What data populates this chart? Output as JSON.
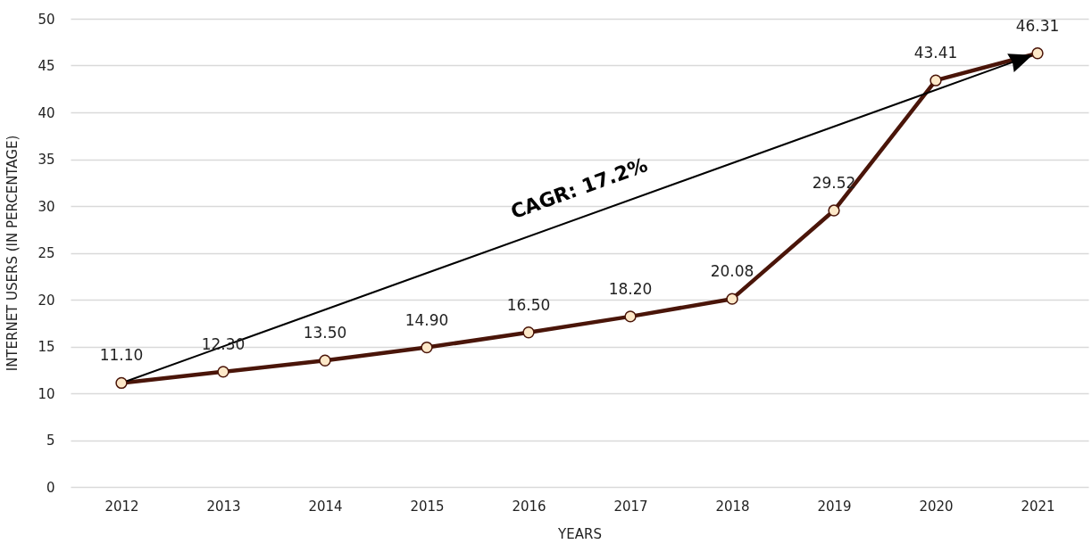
{
  "chart_data": {
    "type": "line",
    "xlabel": "YEARS",
    "ylabel": "INTERNET USERS (IN PERCENTAGE)",
    "categories": [
      "2012",
      "2013",
      "2014",
      "2015",
      "2016",
      "2017",
      "2018",
      "2019",
      "2020",
      "2021"
    ],
    "series": [
      {
        "color": "#4a1509",
        "values": [
          11.1,
          12.3,
          13.5,
          14.9,
          16.5,
          18.2,
          20.08,
          29.52,
          43.41,
          46.31
        ]
      }
    ],
    "value_labels": [
      "11.10",
      "12.30",
      "13.50",
      "14.90",
      "16.50",
      "18.20",
      "20.08",
      "29.52",
      "43.41",
      "46.31"
    ],
    "ylim": [
      0,
      50
    ],
    "yticks": [
      0,
      5,
      10,
      15,
      20,
      25,
      30,
      35,
      40,
      45,
      50
    ],
    "grid": "y",
    "marker": "circle",
    "line_style": "solid",
    "legend": false,
    "annotations": [
      "CAGR: 17.2%"
    ]
  }
}
